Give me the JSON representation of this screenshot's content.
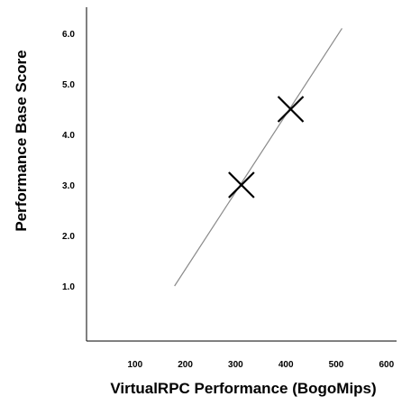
{
  "chart_data": {
    "type": "scatter",
    "xlabel": "VirtualRPC Performance (BogoMips)",
    "ylabel": "Performance Base Score",
    "xlim": [
      0,
      600
    ],
    "ylim": [
      0,
      6.5
    ],
    "x_ticks": [
      {
        "value": 100,
        "label": "100"
      },
      {
        "value": 200,
        "label": "200"
      },
      {
        "value": 300,
        "label": "300"
      },
      {
        "value": 400,
        "label": "400"
      },
      {
        "value": 500,
        "label": "500"
      },
      {
        "value": 600,
        "label": "600"
      }
    ],
    "y_ticks": [
      {
        "value": 1,
        "label": "1.0"
      },
      {
        "value": 2,
        "label": "2.0"
      },
      {
        "value": 3,
        "label": "3.0"
      },
      {
        "value": 4,
        "label": "4.0"
      },
      {
        "value": 5,
        "label": "5.0"
      },
      {
        "value": 6,
        "label": "6.0"
      }
    ],
    "points": [
      {
        "x": 308,
        "y": 3.0
      },
      {
        "x": 406,
        "y": 4.5
      }
    ],
    "trend_line": {
      "x": [
        175,
        508
      ],
      "y": [
        1.0,
        6.1
      ]
    },
    "marker": "x",
    "grid": false,
    "legend": false
  }
}
